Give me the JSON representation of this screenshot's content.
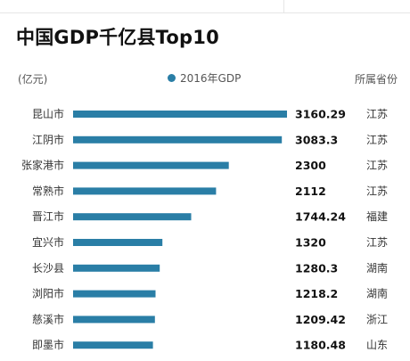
{
  "chart_data": {
    "type": "bar",
    "orientation": "horizontal",
    "title": "中国GDP千亿县Top10",
    "unit_label": "(亿元)",
    "legend": {
      "label": "●2016年GDP",
      "placement": "top-center"
    },
    "extra_column_header": "所属省份",
    "categories": [
      "昆山市",
      "江阴市",
      "张家港市",
      "常熟市",
      "晋江市",
      "宜兴市",
      "长沙县",
      "浏阳市",
      "慈溪市",
      "即墨市"
    ],
    "values": [
      3160.29,
      3083.3,
      2300,
      2112,
      1744.24,
      1320,
      1280.3,
      1218.2,
      1209.42,
      1180.48
    ],
    "value_labels": [
      "3160.29",
      "3083.3",
      "2300",
      "2112",
      "1744.24",
      "1320",
      "1280.3",
      "1218.2",
      "1209.42",
      "1180.48"
    ],
    "provinces": [
      "江苏",
      "江苏",
      "江苏",
      "江苏",
      "福建",
      "江苏",
      "湖南",
      "湖南",
      "浙江",
      "山东"
    ],
    "bar_color": "#2a7ea6",
    "grid": false
  }
}
